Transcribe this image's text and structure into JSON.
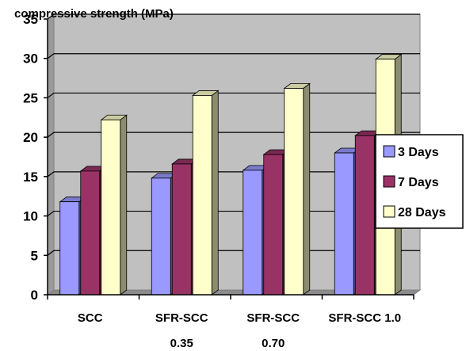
{
  "chart_data": {
    "type": "bar",
    "title": "compressive strength (MPa)",
    "xlabel": "",
    "ylabel": "",
    "ylim": [
      0,
      35
    ],
    "yticks": [
      0,
      5,
      10,
      15,
      20,
      25,
      30,
      35
    ],
    "grid": true,
    "legend_position": "right",
    "categories": [
      [
        "SCC"
      ],
      [
        "SFR-SCC",
        "0.35"
      ],
      [
        "SFR-SCC",
        "0.70"
      ],
      [
        "SFR-SCC 1.0"
      ]
    ],
    "series": [
      {
        "name": "3 Days",
        "values": [
          11.8,
          14.8,
          15.8,
          18.0
        ],
        "color": "#9999ff"
      },
      {
        "name": "7 Days",
        "values": [
          15.7,
          16.6,
          17.8,
          20.2
        ],
        "color": "#993366"
      },
      {
        "name": "28 Days",
        "values": [
          22.2,
          25.3,
          26.2,
          29.9
        ],
        "color": "#ffffcc"
      }
    ]
  }
}
